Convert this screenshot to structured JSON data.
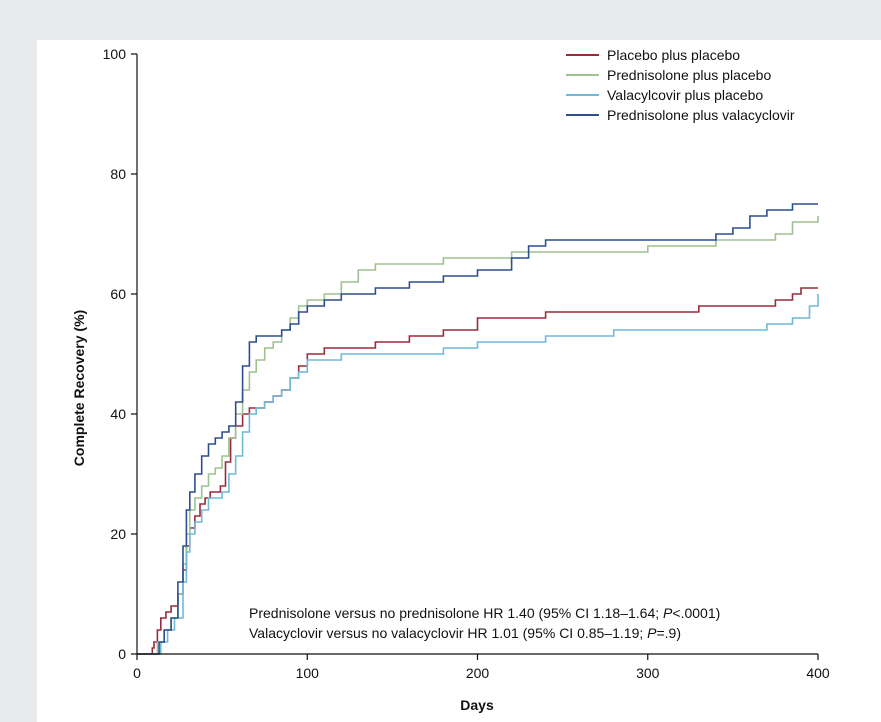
{
  "chart_data": {
    "type": "line",
    "xlabel": "Days",
    "ylabel": "Complete Recovery (%)",
    "xlim": [
      0,
      400
    ],
    "ylim": [
      0,
      100
    ],
    "xticks": [
      "0",
      "100",
      "200",
      "300",
      "400"
    ],
    "yticks": [
      "0",
      "20",
      "40",
      "60",
      "80",
      "100"
    ],
    "grid": false,
    "legend_position": "top-right",
    "annotations": [
      {
        "parts": [
          "Prednisolone versus no prednisolone HR 1.40 (95% CI 1.18–1.64; ",
          "P",
          "<.0001)"
        ]
      },
      {
        "parts": [
          "Valacyclovir versus no valacyclovir HR 1.01 (95% CI 0.85–1.19; ",
          "P",
          "=.9)"
        ]
      }
    ],
    "series": [
      {
        "name": "Placebo plus placebo",
        "color": "#9b2a3a",
        "x": [
          0,
          8,
          9,
          10,
          12,
          14,
          17,
          20,
          24,
          27,
          29,
          31,
          34,
          37,
          40,
          43,
          46,
          49,
          52,
          55,
          58,
          62,
          66,
          70,
          75,
          80,
          85,
          90,
          95,
          100,
          110,
          120,
          140,
          160,
          180,
          200,
          220,
          240,
          260,
          280,
          300,
          330,
          360,
          375,
          385,
          390,
          400
        ],
        "y": [
          0,
          0,
          1,
          2,
          4,
          6,
          7,
          8,
          10,
          14,
          18,
          21,
          23,
          25,
          26,
          27,
          27,
          28,
          32,
          36,
          38,
          40,
          41,
          41,
          42,
          43,
          44,
          46,
          48,
          50,
          51,
          51,
          52,
          53,
          54,
          56,
          56,
          57,
          57,
          57,
          57,
          58,
          58,
          59,
          60,
          61,
          61
        ]
      },
      {
        "name": "Prednisolone plus placebo",
        "color": "#9dc18f",
        "x": [
          0,
          8,
          12,
          16,
          20,
          24,
          27,
          29,
          31,
          34,
          38,
          42,
          46,
          50,
          54,
          58,
          62,
          66,
          70,
          75,
          80,
          85,
          90,
          95,
          100,
          110,
          120,
          130,
          140,
          160,
          180,
          200,
          220,
          240,
          260,
          280,
          300,
          320,
          340,
          360,
          375,
          385,
          400
        ],
        "y": [
          0,
          0,
          2,
          4,
          6,
          10,
          15,
          20,
          24,
          26,
          28,
          30,
          31,
          33,
          36,
          40,
          44,
          47,
          49,
          51,
          52,
          54,
          56,
          58,
          59,
          60,
          62,
          64,
          65,
          65,
          66,
          66,
          67,
          67,
          67,
          67,
          68,
          68,
          69,
          69,
          70,
          72,
          73
        ]
      },
      {
        "name": "Valacylcovir plus placebo",
        "color": "#6fb9d9",
        "x": [
          0,
          12,
          14,
          18,
          22,
          27,
          29,
          31,
          34,
          38,
          42,
          46,
          50,
          54,
          58,
          62,
          66,
          70,
          75,
          80,
          85,
          90,
          95,
          100,
          120,
          150,
          180,
          200,
          240,
          280,
          320,
          350,
          370,
          385,
          395,
          400
        ],
        "y": [
          0,
          0,
          2,
          4,
          6,
          12,
          17,
          20,
          22,
          24,
          26,
          26,
          27,
          30,
          33,
          37,
          40,
          41,
          42,
          43,
          44,
          46,
          47,
          49,
          50,
          50,
          51,
          52,
          53,
          54,
          54,
          54,
          55,
          56,
          58,
          60
        ]
      },
      {
        "name": "Prednisolone plus valacyclovir",
        "color": "#2d4f8f",
        "x": [
          0,
          10,
          13,
          16,
          20,
          24,
          27,
          29,
          31,
          34,
          38,
          42,
          46,
          50,
          54,
          58,
          62,
          66,
          70,
          75,
          80,
          85,
          90,
          95,
          100,
          110,
          120,
          140,
          160,
          180,
          200,
          220,
          230,
          240,
          260,
          280,
          300,
          320,
          340,
          350,
          360,
          370,
          380,
          385,
          390,
          400
        ],
        "y": [
          0,
          0,
          2,
          4,
          6,
          12,
          18,
          24,
          27,
          30,
          33,
          35,
          36,
          37,
          38,
          42,
          48,
          52,
          53,
          53,
          53,
          54,
          55,
          57,
          58,
          59,
          60,
          61,
          62,
          63,
          64,
          66,
          68,
          69,
          69,
          69,
          69,
          69,
          70,
          71,
          73,
          74,
          74,
          75,
          75,
          75
        ]
      }
    ]
  }
}
